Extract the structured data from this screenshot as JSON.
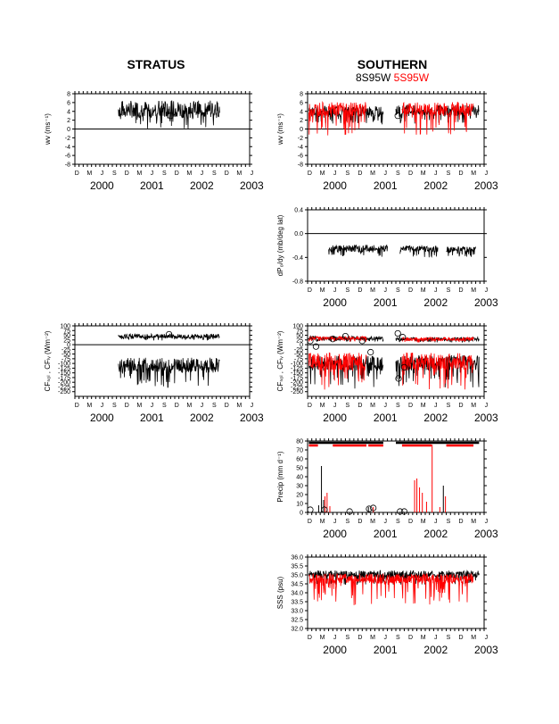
{
  "titles": {
    "left": "STRATUS",
    "right": "SOUTHERN",
    "right_sub_black": "8S95W",
    "right_sub_red": "5S95W"
  },
  "colors": {
    "series_a": "#000000",
    "series_b": "#ff0000"
  },
  "month_labels": [
    "D",
    "M",
    "J",
    "S",
    "D",
    "M",
    "J",
    "S",
    "D",
    "M",
    "J",
    "S",
    "D",
    "M",
    "J"
  ],
  "year_labels": [
    "2000",
    "2001",
    "2002",
    "2003"
  ],
  "chart_data": [
    {
      "id": "stratus-wind",
      "type": "line",
      "panel": "left-1",
      "ylabel": "wv (ms⁻¹)",
      "ylim": [
        -8,
        8
      ],
      "yticks": [
        8,
        6,
        4,
        2,
        0,
        -2,
        -4,
        -6,
        -8
      ],
      "x_range": [
        "1999-12-01",
        "2003-06-01"
      ],
      "series": [
        {
          "color": "#000000",
          "start": "2000-10-15",
          "end": "2002-10-25",
          "base": 4.5,
          "amp": 2.5,
          "neg_amp": 3.0
        }
      ],
      "markers": [
        {
          "x": "2001-11-01",
          "y": 3.0
        }
      ],
      "zero_line": true
    },
    {
      "id": "southern-wind",
      "type": "line",
      "panel": "right-1",
      "ylabel": "wv (ms⁻¹)",
      "ylim": [
        -8,
        8
      ],
      "yticks": [
        8,
        6,
        4,
        2,
        0,
        -2,
        -4,
        -6,
        -8
      ],
      "x_range": [
        "1999-12-01",
        "2003-06-01"
      ],
      "series": [
        {
          "color": "#000000",
          "start": "1999-12-10",
          "end": "2001-06-01",
          "base": 4.0,
          "amp": 1.5,
          "neg_amp": 2.0
        },
        {
          "color": "#000000",
          "start": "2001-09-01",
          "end": "2003-04-25",
          "base": 4.2,
          "amp": 1.5,
          "neg_amp": 2.0
        },
        {
          "color": "#ff0000",
          "start": "1999-12-10",
          "end": "2001-02-01",
          "base": 4.5,
          "amp": 2.0,
          "neg_amp": 4.0
        },
        {
          "color": "#ff0000",
          "start": "2001-10-15",
          "end": "2003-03-15",
          "base": 4.5,
          "amp": 2.0,
          "neg_amp": 4.0
        }
      ],
      "markers": [
        {
          "x": "2001-09-15",
          "y": 3.0
        }
      ],
      "zero_line": true
    },
    {
      "id": "southern-pressure-gradient",
      "type": "line",
      "panel": "right-2",
      "ylabel": "dP₀/dy (mb/deg lat)",
      "ylim": [
        -0.8,
        0.4
      ],
      "yticks": [
        0.4,
        0.0,
        -0.4,
        -0.8
      ],
      "ytick_labels": [
        "0.4",
        "0.0",
        "-0.4",
        "-0.8"
      ],
      "x_range": [
        "1999-12-01",
        "2003-06-01"
      ],
      "series": [
        {
          "color": "#000000",
          "start": "2000-05-01",
          "end": "2001-07-01",
          "base": -0.25,
          "amp": 0.08,
          "neg_amp": 0.1
        },
        {
          "color": "#000000",
          "start": "2001-10-01",
          "end": "2002-07-01",
          "base": -0.25,
          "amp": 0.06,
          "neg_amp": 0.1
        },
        {
          "color": "#000000",
          "start": "2002-09-01",
          "end": "2003-04-01",
          "base": -0.27,
          "amp": 0.06,
          "neg_amp": 0.08
        }
      ],
      "zero_line": true
    },
    {
      "id": "stratus-heat-flux",
      "type": "line",
      "panel": "left-3",
      "ylabel": "CFₛₒₗ , CFₗᵥ (Wm⁻²)",
      "ylim": [
        -275,
        100
      ],
      "yticks": [
        100,
        75,
        50,
        25,
        0,
        -25,
        -50,
        -75,
        -100,
        -125,
        -150,
        -175,
        -200,
        -225,
        -250
      ],
      "x_range": [
        "1999-12-01",
        "2003-06-01"
      ],
      "series": [
        {
          "color": "#000000",
          "start": "2000-10-15",
          "end": "2002-10-25",
          "base": 45,
          "amp": 15,
          "neg_amp": 15
        },
        {
          "color": "#000000",
          "start": "2000-10-15",
          "end": "2002-10-25",
          "base": -110,
          "amp": 50,
          "neg_amp": 80
        }
      ],
      "markers": [
        {
          "x": "2001-10-20",
          "y": 55
        }
      ],
      "zero_line": true
    },
    {
      "id": "southern-heat-flux",
      "type": "line",
      "panel": "right-3",
      "ylabel": "CFₛₒₗ , CFₗᵥ (Wm⁻²)",
      "ylim": [
        -275,
        100
      ],
      "yticks": [
        100,
        75,
        50,
        25,
        0,
        -25,
        -50,
        -75,
        -100,
        -125,
        -150,
        -175,
        -200,
        -225,
        -250
      ],
      "x_range": [
        "1999-12-01",
        "2003-06-01"
      ],
      "series": [
        {
          "color": "#000000",
          "start": "1999-12-10",
          "end": "2001-06-01",
          "base": 35,
          "amp": 12,
          "neg_amp": 12
        },
        {
          "color": "#000000",
          "start": "1999-12-10",
          "end": "2001-06-01",
          "base": -100,
          "amp": 50,
          "neg_amp": 90
        },
        {
          "color": "#000000",
          "start": "2001-09-01",
          "end": "2003-04-25",
          "base": 30,
          "amp": 12,
          "neg_amp": 12
        },
        {
          "color": "#000000",
          "start": "2001-09-01",
          "end": "2003-04-25",
          "base": -95,
          "amp": 50,
          "neg_amp": 90
        },
        {
          "color": "#ff0000",
          "start": "1999-12-10",
          "end": "2001-02-01",
          "base": 35,
          "amp": 12,
          "neg_amp": 12
        },
        {
          "color": "#ff0000",
          "start": "1999-12-10",
          "end": "2001-02-01",
          "base": -90,
          "amp": 60,
          "neg_amp": 100
        },
        {
          "color": "#ff0000",
          "start": "2001-10-15",
          "end": "2003-03-15",
          "base": 30,
          "amp": 12,
          "neg_amp": 12
        },
        {
          "color": "#ff0000",
          "start": "2001-10-15",
          "end": "2003-03-15",
          "base": -90,
          "amp": 60,
          "neg_amp": 100
        }
      ],
      "markers": [
        {
          "x": "1999-12-20",
          "y": 20
        },
        {
          "x": "2000-02-01",
          "y": -10
        },
        {
          "x": "2000-06-01",
          "y": 30
        },
        {
          "x": "2000-09-01",
          "y": 45
        },
        {
          "x": "2001-01-01",
          "y": 20
        },
        {
          "x": "2001-03-01",
          "y": -40
        },
        {
          "x": "2001-09-15",
          "y": 60
        },
        {
          "x": "2001-10-20",
          "y": 40
        },
        {
          "x": "2001-09-20",
          "y": -180
        },
        {
          "x": "2001-11-01",
          "y": -120
        }
      ],
      "zero_line": true
    },
    {
      "id": "southern-precip",
      "type": "bar",
      "panel": "right-4",
      "ylabel": "Precip (mm d⁻¹)",
      "ylim": [
        0,
        80
      ],
      "yticks": [
        80,
        70,
        60,
        50,
        40,
        30,
        20,
        10,
        0
      ],
      "x_range": [
        "1999-12-01",
        "2003-06-01"
      ],
      "spikes": [
        {
          "x": "2000-03-10",
          "y": 52,
          "color": "#000000"
        },
        {
          "x": "2000-03-25",
          "y": 14,
          "color": "#000000"
        },
        {
          "x": "2000-02-20",
          "y": 8,
          "color": "#000000"
        },
        {
          "x": "2000-04-20",
          "y": 22,
          "color": "#ff0000"
        },
        {
          "x": "2000-04-05",
          "y": 18,
          "color": "#ff0000"
        },
        {
          "x": "2000-05-10",
          "y": 7,
          "color": "#ff0000"
        },
        {
          "x": "2001-02-15",
          "y": 6,
          "color": "#000000"
        },
        {
          "x": "2001-03-20",
          "y": 6,
          "color": "#ff0000"
        },
        {
          "x": "2002-01-15",
          "y": 36,
          "color": "#ff0000"
        },
        {
          "x": "2002-02-01",
          "y": 38,
          "color": "#ff0000"
        },
        {
          "x": "2002-02-20",
          "y": 28,
          "color": "#ff0000"
        },
        {
          "x": "2002-03-10",
          "y": 22,
          "color": "#ff0000"
        },
        {
          "x": "2002-04-10",
          "y": 12,
          "color": "#ff0000"
        },
        {
          "x": "2002-05-20",
          "y": 76,
          "color": "#ff0000"
        },
        {
          "x": "2002-08-10",
          "y": 30,
          "color": "#000000"
        },
        {
          "x": "2002-08-25",
          "y": 18,
          "color": "#ff0000"
        },
        {
          "x": "2002-07-15",
          "y": 6,
          "color": "#ff0000"
        }
      ],
      "markers": [
        {
          "x": "1999-12-20",
          "y": 3
        },
        {
          "x": "2000-04-01",
          "y": 3
        },
        {
          "x": "2000-10-01",
          "y": 1
        },
        {
          "x": "2001-02-20",
          "y": 4
        },
        {
          "x": "2001-03-20",
          "y": 5
        },
        {
          "x": "2001-10-01",
          "y": 1
        },
        {
          "x": "2001-11-01",
          "y": 1
        }
      ],
      "bars_top": [
        {
          "start": "1999-12-10",
          "end": "2001-06-01",
          "color": "#000000",
          "y": 78
        },
        {
          "start": "2001-09-01",
          "end": "2003-04-25",
          "color": "#000000",
          "y": 78
        },
        {
          "start": "1999-12-10",
          "end": "2000-02-15",
          "color": "#ff0000",
          "y": 75
        },
        {
          "start": "2000-06-01",
          "end": "2001-02-01",
          "color": "#ff0000",
          "y": 75
        },
        {
          "start": "2001-02-15",
          "end": "2001-06-01",
          "color": "#ff0000",
          "y": 75
        },
        {
          "start": "2001-10-15",
          "end": "2002-05-15",
          "color": "#ff0000",
          "y": 75
        },
        {
          "start": "2002-09-01",
          "end": "2003-03-15",
          "color": "#ff0000",
          "y": 75
        }
      ]
    },
    {
      "id": "southern-salinity",
      "type": "line",
      "panel": "right-5",
      "ylabel": "SSS (psu)",
      "ylim": [
        32.0,
        36.0
      ],
      "yticks": [
        36.0,
        35.5,
        35.0,
        34.5,
        34.0,
        33.5,
        33.0,
        32.5,
        32.0
      ],
      "ytick_labels": [
        "36.0",
        "35.5",
        "35.0",
        "34.5",
        "34.0",
        "33.5",
        "33.0",
        "32.5",
        "32.0"
      ],
      "x_range": [
        "1999-12-01",
        "2003-06-01"
      ],
      "series": [
        {
          "color": "#000000",
          "start": "1999-12-10",
          "end": "2003-04-25",
          "base": 35.05,
          "amp": 0.25,
          "neg_amp": 0.4
        },
        {
          "color": "#ff0000",
          "start": "1999-12-10",
          "end": "2003-03-15",
          "base": 34.8,
          "amp": 0.35,
          "neg_amp": 1.0
        }
      ]
    }
  ]
}
